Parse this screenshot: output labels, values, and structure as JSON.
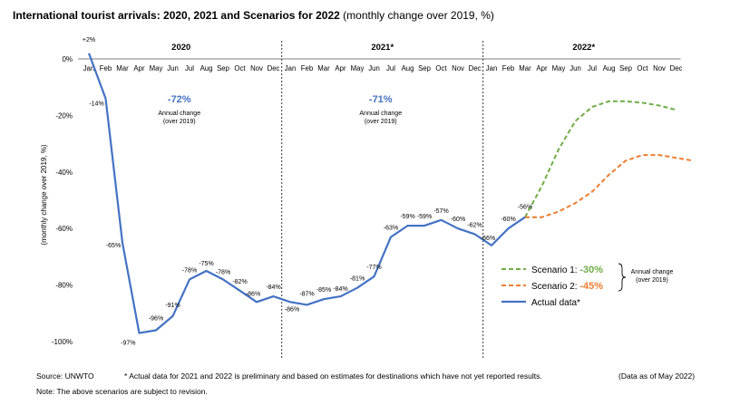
{
  "header": {
    "title_bold": "International tourist arrivals: 2020, 2021 and Scenarios for 2022",
    "title_rest": "(monthly change over 2019, %)"
  },
  "chart_data": {
    "type": "line",
    "ylabel": "(monthly change over 2019, %)",
    "ylim": [
      -100,
      2
    ],
    "yticks": [
      0,
      -20,
      -40,
      -60,
      -80,
      -100
    ],
    "ytick_labels": [
      "0%",
      "-20%",
      "-40%",
      "-60%",
      "-80%",
      "-100%"
    ],
    "months": [
      "Jan",
      "Feb",
      "Mar",
      "Apr",
      "May",
      "Jun",
      "Jul",
      "Aug",
      "Sep",
      "Oct",
      "Nov",
      "Dec"
    ],
    "periods": [
      {
        "label": "2020",
        "annual_change": "-72%",
        "annual_note_1": "Annual change",
        "annual_note_2": "(over 2019)"
      },
      {
        "label": "2021*",
        "annual_change": "-71%",
        "annual_note_1": "Annual change",
        "annual_note_2": "(over 2019)"
      },
      {
        "label": "2022*"
      }
    ],
    "actual": {
      "name": "Actual data*",
      "color": "#4472C4",
      "values": [
        2,
        -14,
        -65,
        -97,
        -96,
        -91,
        -78,
        -75,
        -78,
        -82,
        -86,
        -84,
        -86,
        -87,
        -85,
        -84,
        -81,
        -77,
        -63,
        -59,
        -59,
        -57,
        -60,
        -62,
        -66,
        -60,
        -56
      ],
      "labels": [
        "+2%",
        "-14%",
        "-65%",
        "-97%",
        "-96%",
        "-91%",
        "-78%",
        "-75%",
        "-78%",
        "-82%",
        "-86%",
        "-84%",
        "-86%",
        "-87%",
        "-85%",
        "-84%",
        "-81%",
        "-77%",
        "-63%",
        "-59%",
        "-59%",
        "-57%",
        "-60%",
        "-62%",
        "-66%",
        "-60%",
        "-56%"
      ]
    },
    "scenarios": [
      {
        "name": "Scenario 1:",
        "value_label": "-30%",
        "color": "#70AD47",
        "values": [
          -56,
          -45,
          -32,
          -22,
          -17,
          -15,
          -15,
          -15.5,
          -16.5,
          -18
        ]
      },
      {
        "name": "Scenario 2:",
        "value_label": "-45%",
        "color": "#ED7D31",
        "values": [
          -56,
          -56,
          -54,
          -51,
          -47,
          -41,
          -36,
          -34,
          -34,
          -35,
          -36
        ]
      }
    ],
    "legend_note_1": "Annual change",
    "legend_note_2": "(over 2019)"
  },
  "footer": {
    "source": "Source: UNWTO",
    "asterisk_note": "* Actual data for 2021 and 2022 is preliminary and based on estimates for destinations which have not yet reported results.",
    "data_date": "(Data as of May 2022)",
    "note": "Note: The above scenarios are subject to revision."
  }
}
